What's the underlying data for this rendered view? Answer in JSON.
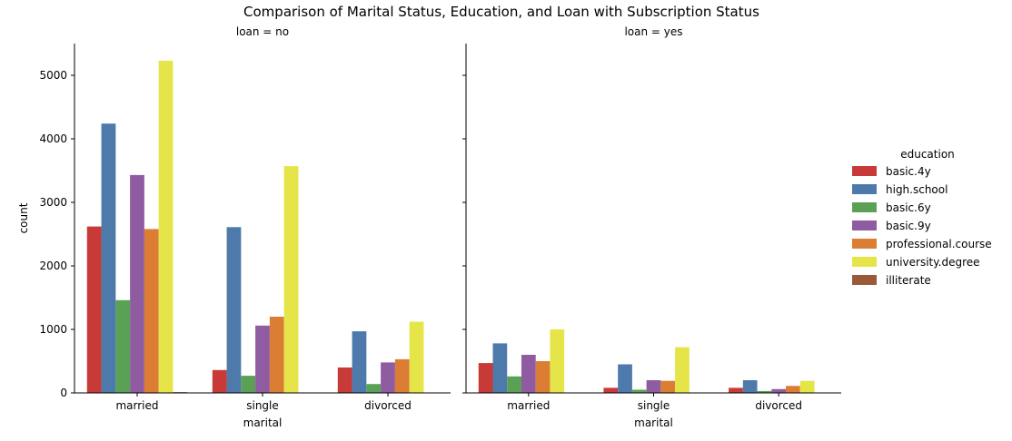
{
  "chart_data": {
    "type": "bar",
    "title": "Comparison of Marital Status, Education, and Loan with Subscription Status",
    "ylabel": "count",
    "xlabel": "marital",
    "ylim": [
      0,
      5500
    ],
    "yticks": [
      0,
      1000,
      2000,
      3000,
      4000,
      5000
    ],
    "grid": false,
    "legend_placement": "right",
    "legend_title": "education",
    "categories": [
      "married",
      "single",
      "divorced"
    ],
    "hues": [
      {
        "name": "basic.4y",
        "color": "#c73a37"
      },
      {
        "name": "high.school",
        "color": "#4e7aab"
      },
      {
        "name": "basic.6y",
        "color": "#5aa155"
      },
      {
        "name": "basic.9y",
        "color": "#8f5ba1"
      },
      {
        "name": "professional.course",
        "color": "#db7d32"
      },
      {
        "name": "university.degree",
        "color": "#e5e54a"
      },
      {
        "name": "illiterate",
        "color": "#9a5a38"
      }
    ],
    "panels": [
      {
        "title": "loan = no",
        "series": [
          {
            "name": "basic.4y",
            "values": [
              2620,
              360,
              400
            ]
          },
          {
            "name": "high.school",
            "values": [
              4240,
              2610,
              970
            ]
          },
          {
            "name": "basic.6y",
            "values": [
              1460,
              270,
              140
            ]
          },
          {
            "name": "basic.9y",
            "values": [
              3430,
              1060,
              480
            ]
          },
          {
            "name": "professional.course",
            "values": [
              2580,
              1200,
              530
            ]
          },
          {
            "name": "university.degree",
            "values": [
              5230,
              3570,
              1120
            ]
          },
          {
            "name": "illiterate",
            "values": [
              12,
              0,
              0
            ]
          }
        ]
      },
      {
        "title": "loan = yes",
        "series": [
          {
            "name": "basic.4y",
            "values": [
              470,
              80,
              80
            ]
          },
          {
            "name": "high.school",
            "values": [
              780,
              450,
              200
            ]
          },
          {
            "name": "basic.6y",
            "values": [
              260,
              50,
              30
            ]
          },
          {
            "name": "basic.9y",
            "values": [
              600,
              200,
              60
            ]
          },
          {
            "name": "professional.course",
            "values": [
              500,
              190,
              110
            ]
          },
          {
            "name": "university.degree",
            "values": [
              1000,
              720,
              190
            ]
          },
          {
            "name": "illiterate",
            "values": [
              5,
              0,
              0
            ]
          }
        ]
      }
    ]
  }
}
